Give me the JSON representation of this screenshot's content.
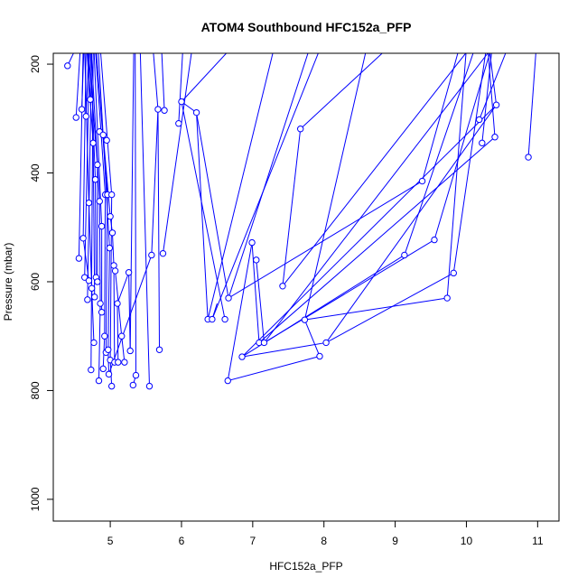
{
  "chart_data": {
    "type": "line",
    "title": "ATOM4 Southbound HFC152a_PFP",
    "xlabel": "HFC152a_PFP",
    "ylabel": "Pressure (mbar)",
    "xlim": [
      4.2,
      11.3
    ],
    "ylim": [
      1040,
      180
    ],
    "y_reversed": true,
    "xticks": [
      5,
      6,
      7,
      8,
      9,
      10,
      11
    ],
    "yticks": [
      200,
      400,
      600,
      800,
      1000
    ],
    "series_color": "#0000ff",
    "marker": "open-circle",
    "points": [
      [
        4.4,
        203
      ],
      [
        4.52,
        298
      ],
      [
        4.6,
        283
      ],
      [
        4.66,
        296
      ],
      [
        4.72,
        265
      ],
      [
        4.56,
        557
      ],
      [
        4.62,
        520
      ],
      [
        4.64,
        592
      ],
      [
        4.68,
        633
      ],
      [
        4.73,
        762
      ],
      [
        4.7,
        455
      ],
      [
        4.76,
        345
      ],
      [
        4.79,
        412
      ],
      [
        4.82,
        385
      ],
      [
        4.85,
        452
      ],
      [
        4.88,
        498
      ],
      [
        4.93,
        440
      ],
      [
        4.96,
        440
      ],
      [
        4.99,
        538
      ],
      [
        5.02,
        440
      ],
      [
        4.7,
        598
      ],
      [
        4.74,
        612
      ],
      [
        4.78,
        628
      ],
      [
        4.8,
        592
      ],
      [
        4.82,
        600
      ],
      [
        4.86,
        640
      ],
      [
        4.88,
        656
      ],
      [
        4.92,
        700
      ],
      [
        4.94,
        730
      ],
      [
        4.97,
        725
      ],
      [
        4.77,
        712
      ],
      [
        4.84,
        782
      ],
      [
        4.9,
        760
      ],
      [
        4.98,
        770
      ],
      [
        5.0,
        744
      ],
      [
        5.02,
        792
      ],
      [
        5.06,
        748
      ],
      [
        5.11,
        748
      ],
      [
        5.16,
        700
      ],
      [
        5.2,
        748
      ],
      [
        4.85,
        324
      ],
      [
        4.9,
        330
      ],
      [
        4.95,
        340
      ],
      [
        5.0,
        480
      ],
      [
        5.03,
        510
      ],
      [
        5.05,
        570
      ],
      [
        5.07,
        580
      ],
      [
        5.1,
        640
      ],
      [
        5.26,
        583
      ],
      [
        5.28,
        727
      ],
      [
        5.32,
        790
      ],
      [
        5.36,
        772
      ],
      [
        5.55,
        792
      ],
      [
        5.58,
        551
      ],
      [
        5.67,
        283
      ],
      [
        5.69,
        725
      ],
      [
        5.76,
        285
      ],
      [
        5.74,
        548
      ],
      [
        5.96,
        309
      ],
      [
        6.0,
        269
      ],
      [
        6.21,
        289
      ],
      [
        6.37,
        669
      ],
      [
        6.43,
        669
      ],
      [
        6.61,
        669
      ],
      [
        6.66,
        630
      ],
      [
        6.65,
        782
      ],
      [
        6.85,
        738
      ],
      [
        6.99,
        528
      ],
      [
        7.05,
        560
      ],
      [
        7.09,
        712
      ],
      [
        7.16,
        712
      ],
      [
        7.42,
        608
      ],
      [
        7.67,
        319
      ],
      [
        7.73,
        670
      ],
      [
        7.94,
        737
      ],
      [
        8.03,
        712
      ],
      [
        9.13,
        551
      ],
      [
        9.38,
        415
      ],
      [
        9.55,
        523
      ],
      [
        9.73,
        630
      ],
      [
        9.82,
        584
      ],
      [
        10.18,
        302
      ],
      [
        10.22,
        345
      ],
      [
        10.4,
        334
      ],
      [
        10.42,
        275
      ],
      [
        10.87,
        371
      ]
    ],
    "segments": [
      [
        4.4,
        203,
        4.52,
        170
      ],
      [
        4.52,
        298,
        4.58,
        170
      ],
      [
        4.6,
        283,
        4.63,
        170
      ],
      [
        4.66,
        296,
        4.7,
        170
      ],
      [
        4.72,
        265,
        4.68,
        170
      ],
      [
        4.56,
        557,
        4.62,
        170
      ],
      [
        4.62,
        520,
        4.66,
        170
      ],
      [
        4.64,
        592,
        4.71,
        170
      ],
      [
        4.68,
        633,
        4.74,
        170
      ],
      [
        4.73,
        762,
        4.76,
        170
      ],
      [
        4.7,
        455,
        4.64,
        170
      ],
      [
        4.76,
        345,
        4.67,
        170
      ],
      [
        4.79,
        412,
        4.72,
        170
      ],
      [
        4.82,
        385,
        4.69,
        170
      ],
      [
        4.85,
        452,
        4.73,
        170
      ],
      [
        4.88,
        498,
        4.77,
        170
      ],
      [
        4.93,
        440,
        4.79,
        170
      ],
      [
        4.96,
        440,
        4.8,
        170
      ],
      [
        4.99,
        538,
        4.83,
        170
      ],
      [
        5.02,
        440,
        4.86,
        170
      ],
      [
        4.7,
        598,
        4.62,
        520
      ],
      [
        4.74,
        612,
        4.7,
        455
      ],
      [
        4.78,
        628,
        4.76,
        345
      ],
      [
        4.8,
        592,
        4.79,
        412
      ],
      [
        4.82,
        600,
        4.82,
        385
      ],
      [
        4.86,
        640,
        4.85,
        452
      ],
      [
        4.88,
        656,
        4.88,
        498
      ],
      [
        4.92,
        700,
        4.93,
        440
      ],
      [
        4.94,
        730,
        4.96,
        440
      ],
      [
        4.97,
        725,
        4.99,
        538
      ],
      [
        4.77,
        712,
        4.74,
        612
      ],
      [
        4.84,
        782,
        4.86,
        640
      ],
      [
        4.9,
        760,
        4.92,
        700
      ],
      [
        4.98,
        770,
        4.97,
        725
      ],
      [
        5.0,
        744,
        5.02,
        440
      ],
      [
        5.02,
        792,
        5.0,
        744
      ],
      [
        5.06,
        748,
        5.05,
        570
      ],
      [
        5.11,
        748,
        5.1,
        640
      ],
      [
        5.16,
        700,
        5.07,
        580
      ],
      [
        5.2,
        748,
        5.16,
        700
      ],
      [
        4.85,
        324,
        4.95,
        340
      ],
      [
        4.9,
        330,
        5.0,
        480
      ],
      [
        5.0,
        480,
        5.03,
        510
      ],
      [
        5.03,
        510,
        5.05,
        570
      ],
      [
        5.1,
        640,
        5.26,
        583
      ],
      [
        5.26,
        583,
        5.28,
        727
      ],
      [
        5.28,
        727,
        5.33,
        170
      ],
      [
        5.36,
        772,
        5.35,
        170
      ],
      [
        5.32,
        790,
        5.36,
        772
      ],
      [
        5.55,
        792,
        5.42,
        170
      ],
      [
        5.58,
        551,
        5.67,
        283
      ],
      [
        5.67,
        283,
        5.6,
        170
      ],
      [
        5.69,
        725,
        5.67,
        283
      ],
      [
        5.74,
        548,
        6.15,
        170
      ],
      [
        5.76,
        285,
        5.72,
        170
      ],
      [
        5.96,
        309,
        6.02,
        170
      ],
      [
        6.0,
        269,
        6.7,
        170
      ],
      [
        6.0,
        269,
        6.21,
        289
      ],
      [
        6.21,
        289,
        6.37,
        669
      ],
      [
        6.21,
        289,
        6.66,
        630
      ],
      [
        6.43,
        669,
        6.5,
        640
      ],
      [
        6.37,
        669,
        7.3,
        170
      ],
      [
        6.43,
        669,
        7.95,
        170
      ],
      [
        6.61,
        669,
        6.0,
        269
      ],
      [
        6.66,
        630,
        7.8,
        170
      ],
      [
        6.65,
        782,
        7.94,
        737
      ],
      [
        6.65,
        782,
        6.99,
        528
      ],
      [
        6.85,
        738,
        8.03,
        712
      ],
      [
        6.85,
        738,
        9.13,
        551
      ],
      [
        6.99,
        528,
        7.09,
        712
      ],
      [
        7.05,
        560,
        7.16,
        712
      ],
      [
        7.09,
        712,
        10.4,
        334
      ],
      [
        7.16,
        712,
        9.55,
        523
      ],
      [
        7.16,
        712,
        10.3,
        180
      ],
      [
        7.42,
        608,
        7.67,
        319
      ],
      [
        7.42,
        608,
        10.05,
        170
      ],
      [
        7.67,
        319,
        8.9,
        170
      ],
      [
        7.73,
        670,
        9.73,
        630
      ],
      [
        7.94,
        737,
        7.73,
        670
      ],
      [
        8.03,
        712,
        9.82,
        584
      ],
      [
        8.03,
        712,
        10.42,
        275
      ],
      [
        9.13,
        551,
        10.12,
        170
      ],
      [
        9.38,
        415,
        9.9,
        170
      ],
      [
        9.55,
        523,
        10.35,
        170
      ],
      [
        9.73,
        630,
        10.0,
        170
      ],
      [
        9.82,
        584,
        10.28,
        170
      ],
      [
        10.18,
        302,
        10.58,
        170
      ],
      [
        10.22,
        345,
        10.36,
        170
      ],
      [
        10.4,
        334,
        10.3,
        170
      ],
      [
        10.42,
        275,
        10.32,
        170
      ],
      [
        10.87,
        371,
        10.98,
        170
      ],
      [
        9.38,
        415,
        6.66,
        630
      ],
      [
        7.73,
        670,
        8.6,
        170
      ],
      [
        6.85,
        738,
        10.42,
        275
      ],
      [
        5.58,
        551,
        4.98,
        770
      ]
    ]
  }
}
